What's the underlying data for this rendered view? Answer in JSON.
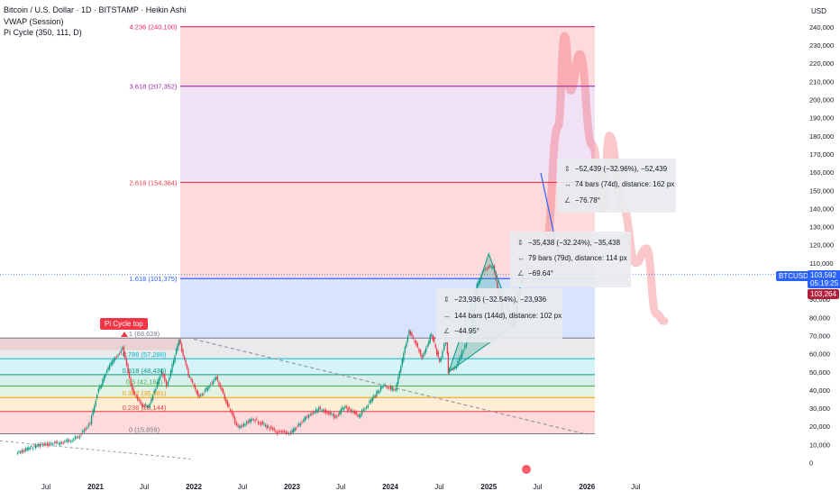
{
  "header": {
    "title": "Bitcoin / U.S. Dollar · 1D · BITSTAMP · Heikin Ashi",
    "indicator1": "VWAP (Session)",
    "indicator2": "Pi Cycle (350, 111, D)"
  },
  "currency": "USD",
  "symbol_tag": "BTCUSD",
  "price_badge": {
    "price": "103,592",
    "countdown": "05:19:25",
    "color": "#1e4fd6"
  },
  "lower_badge": {
    "price": "103,264",
    "color": "#b2213c"
  },
  "pi_cycle_label": "Pi Cycle top",
  "measurements": [
    {
      "price_change": "−52,439 (−32.96%), −52,439",
      "bars": "74 bars (74d), distance: 162 px",
      "angle": "−76.78°"
    },
    {
      "price_change": "−35,438 (−32.24%), −35,438",
      "bars": "79 bars (79d), distance: 114 px",
      "angle": "−69.64°"
    },
    {
      "price_change": "−23,936 (−32.54%), −23,936",
      "bars": "144 bars (144d), distance: 102 px",
      "angle": "−44.95°"
    }
  ],
  "chart_data": {
    "type": "candlestick",
    "title": "Bitcoin / U.S. Dollar · 1D · BITSTAMP · Heikin Ashi",
    "y_axis": {
      "ticks": [
        0,
        10000,
        20000,
        30000,
        40000,
        50000,
        60000,
        70000,
        80000,
        90000,
        100000,
        110000,
        120000,
        130000,
        140000,
        150000,
        160000,
        170000,
        180000,
        190000,
        200000,
        210000,
        220000,
        230000,
        240000
      ],
      "tick_labels": [
        "0",
        "10,000",
        "20,000",
        "30,000",
        "40,000",
        "50,000",
        "60,000",
        "70,000",
        "80,000",
        "90,000",
        "100,000",
        "110,000",
        "120,000",
        "130,000",
        "140,000",
        "150,000",
        "160,000",
        "170,000",
        "180,000",
        "190,000",
        "200,000",
        "210,000",
        "220,000",
        "230,000",
        "240,000"
      ],
      "range": [
        0,
        243000
      ],
      "position": "right"
    },
    "x_axis": {
      "labels": [
        "Jul",
        "2021",
        "Jul",
        "2022",
        "Jul",
        "2023",
        "Jul",
        "2024",
        "Jul",
        "2025",
        "Jul",
        "2026",
        "Jul"
      ],
      "dates": [
        "2020-07-01",
        "2021-01-01",
        "2021-07-01",
        "2022-01-01",
        "2022-07-01",
        "2023-01-01",
        "2023-07-01",
        "2024-01-01",
        "2024-07-01",
        "2025-01-01",
        "2025-07-01",
        "2026-01-01",
        "2026-07-01"
      ]
    },
    "series": [
      {
        "kind": "price",
        "points": [
          [
            "2020-03-15",
            5000
          ],
          [
            "2020-06-01",
            9500
          ],
          [
            "2020-09-01",
            11000
          ],
          [
            "2020-11-01",
            14000
          ],
          [
            "2020-12-15",
            22000
          ],
          [
            "2021-01-10",
            38000
          ],
          [
            "2021-02-20",
            52000
          ],
          [
            "2021-04-14",
            63000
          ],
          [
            "2021-05-20",
            40000
          ],
          [
            "2021-06-25",
            32000
          ],
          [
            "2021-07-20",
            31000
          ],
          [
            "2021-09-07",
            50000
          ],
          [
            "2021-09-25",
            42000
          ],
          [
            "2021-11-10",
            67500
          ],
          [
            "2021-12-15",
            48000
          ],
          [
            "2022-01-25",
            36000
          ],
          [
            "2022-03-28",
            47000
          ],
          [
            "2022-05-15",
            30000
          ],
          [
            "2022-06-18",
            19000
          ],
          [
            "2022-08-15",
            24000
          ],
          [
            "2022-11-10",
            16500
          ],
          [
            "2022-12-30",
            16500
          ],
          [
            "2023-02-20",
            24000
          ],
          [
            "2023-04-14",
            30000
          ],
          [
            "2023-06-15",
            25000
          ],
          [
            "2023-07-15",
            30500
          ],
          [
            "2023-09-10",
            25800
          ],
          [
            "2023-10-25",
            34500
          ],
          [
            "2023-12-10",
            43000
          ],
          [
            "2024-01-23",
            39500
          ],
          [
            "2024-03-14",
            73000
          ],
          [
            "2024-05-01",
            58000
          ],
          [
            "2024-06-05",
            71000
          ],
          [
            "2024-07-05",
            55000
          ],
          [
            "2024-07-29",
            69000
          ],
          [
            "2024-08-05",
            50000
          ],
          [
            "2024-09-06",
            53000
          ],
          [
            "2024-10-29",
            72000
          ],
          [
            "2024-11-22",
            98000
          ],
          [
            "2024-12-17",
            107000
          ],
          [
            "2025-01-20",
            108000
          ],
          [
            "2025-02-28",
            80000
          ],
          [
            "2025-04-07",
            76000
          ],
          [
            "2025-04-25",
            94000
          ],
          [
            "2025-05-10",
            103592
          ]
        ]
      }
    ],
    "fib_retracement": [
      {
        "level": "0",
        "value": 15859,
        "color": "#787b86"
      },
      {
        "level": "0.236",
        "value": 28144,
        "color": "#f23645"
      },
      {
        "level": "0.382",
        "value": 35881,
        "color": "#ff9800"
      },
      {
        "level": "0.5",
        "value": 42163,
        "color": "#4caf50"
      },
      {
        "level": "0.618",
        "value": 48430,
        "color": "#089981"
      },
      {
        "level": "0.786",
        "value": 57288,
        "color": "#00bcd4"
      },
      {
        "level": "1",
        "value": 68628,
        "color": "#787b86"
      }
    ],
    "fib_retracement_labels": [
      "0 (15,859)",
      "0.236 (28,144)",
      "0.382 (35,881)",
      "0.5 (42,163)",
      "0.618 (48,430)",
      "0.786 (57,288)",
      "1 (68,628)"
    ],
    "fib_extension": [
      {
        "level": "1.618",
        "value": 101375,
        "color": "#2962ff"
      },
      {
        "level": "2.618",
        "value": 154364,
        "color": "#f23645"
      },
      {
        "level": "3.618",
        "value": 207352,
        "color": "#9c27b0"
      },
      {
        "level": "4.236",
        "value": 240100,
        "color": "#e91e63"
      }
    ],
    "fib_extension_labels": [
      "1.618 (101,375)",
      "2.618 (154,364)",
      "3.618 (207,352)",
      "4.236 (240,100)"
    ],
    "projection_path": [
      [
        "2025-08-01",
        120000
      ],
      [
        "2025-09-15",
        185000
      ],
      [
        "2025-10-10",
        235000
      ],
      [
        "2025-11-01",
        205000
      ],
      [
        "2025-12-05",
        225000
      ],
      [
        "2026-01-20",
        175000
      ],
      [
        "2026-03-01",
        140000
      ],
      [
        "2026-03-25",
        180000
      ],
      [
        "2026-05-15",
        140000
      ],
      [
        "2026-07-01",
        110000
      ],
      [
        "2026-08-10",
        118000
      ],
      [
        "2026-09-15",
        82000
      ],
      [
        "2026-10-15",
        78000
      ]
    ],
    "trend_line": [
      [
        "2022-01-01",
        68000
      ],
      [
        "2026-01-01",
        15500
      ]
    ],
    "ytd_lines": [
      [
        "2020-03-01",
        12000
      ],
      [
        "2021-12-20",
        2000
      ]
    ],
    "grid": false,
    "legend": "none"
  }
}
